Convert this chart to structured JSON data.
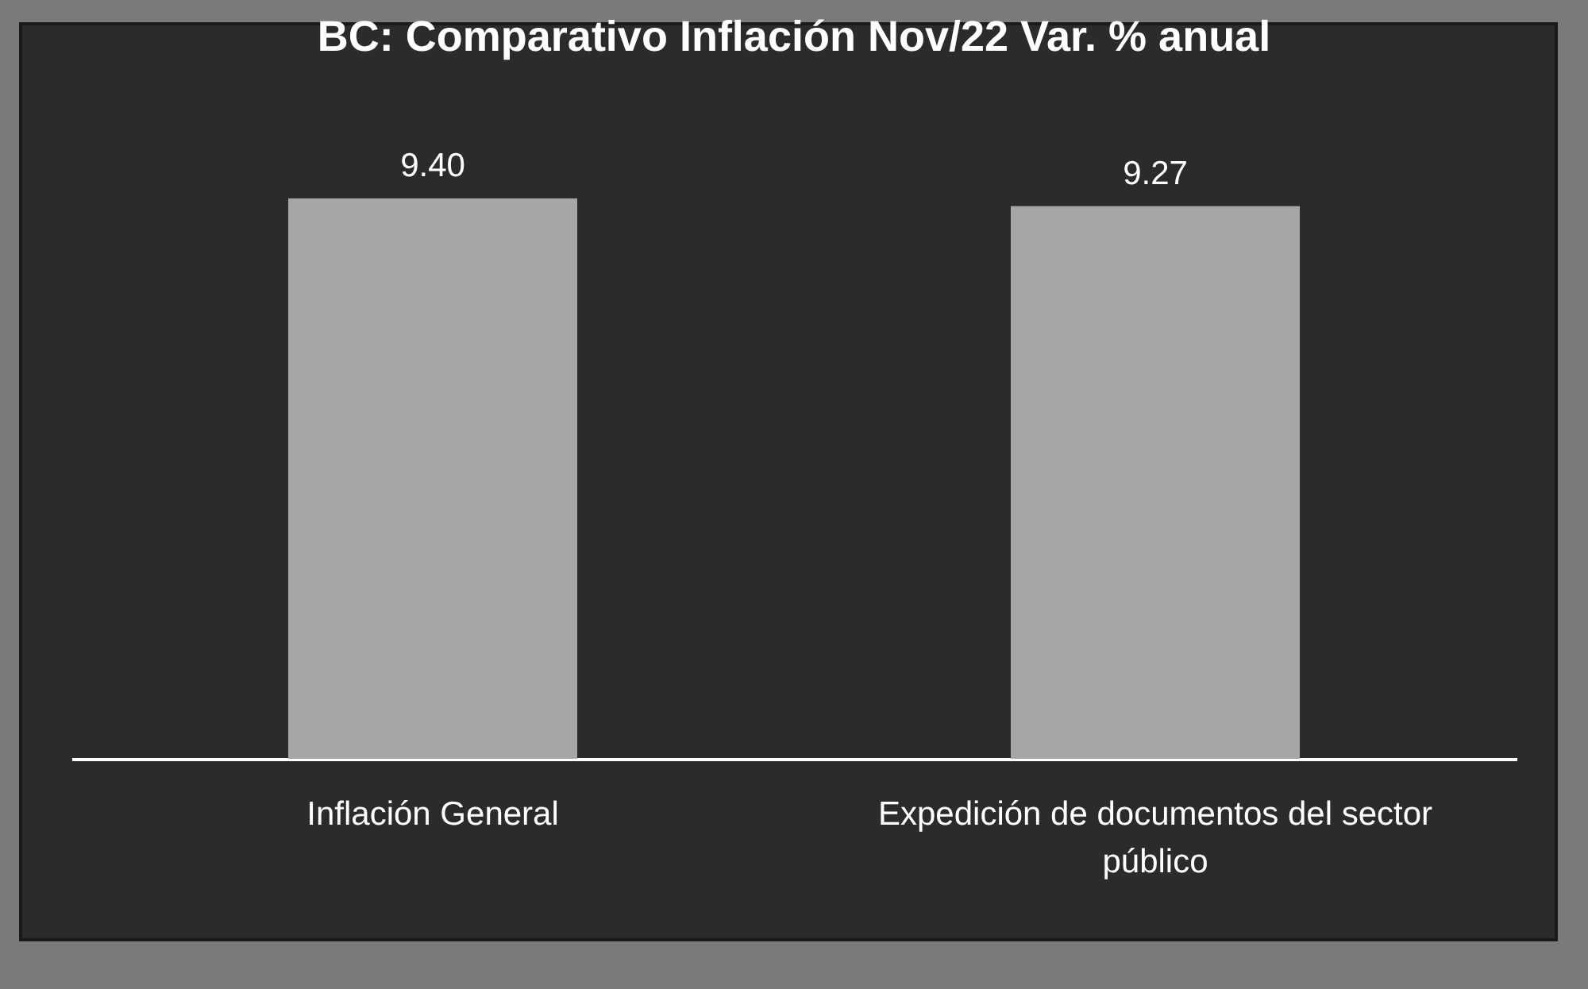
{
  "chart_data": {
    "type": "bar",
    "title": "BC: Comparativo Inflación Nov/22 Var. % anual",
    "categories": [
      "Inflación General",
      "Expedición de documentos del sector público"
    ],
    "values": [
      9.4,
      9.27
    ],
    "value_labels": [
      "9.40",
      "9.27"
    ],
    "color": "#a6a6a6"
  }
}
